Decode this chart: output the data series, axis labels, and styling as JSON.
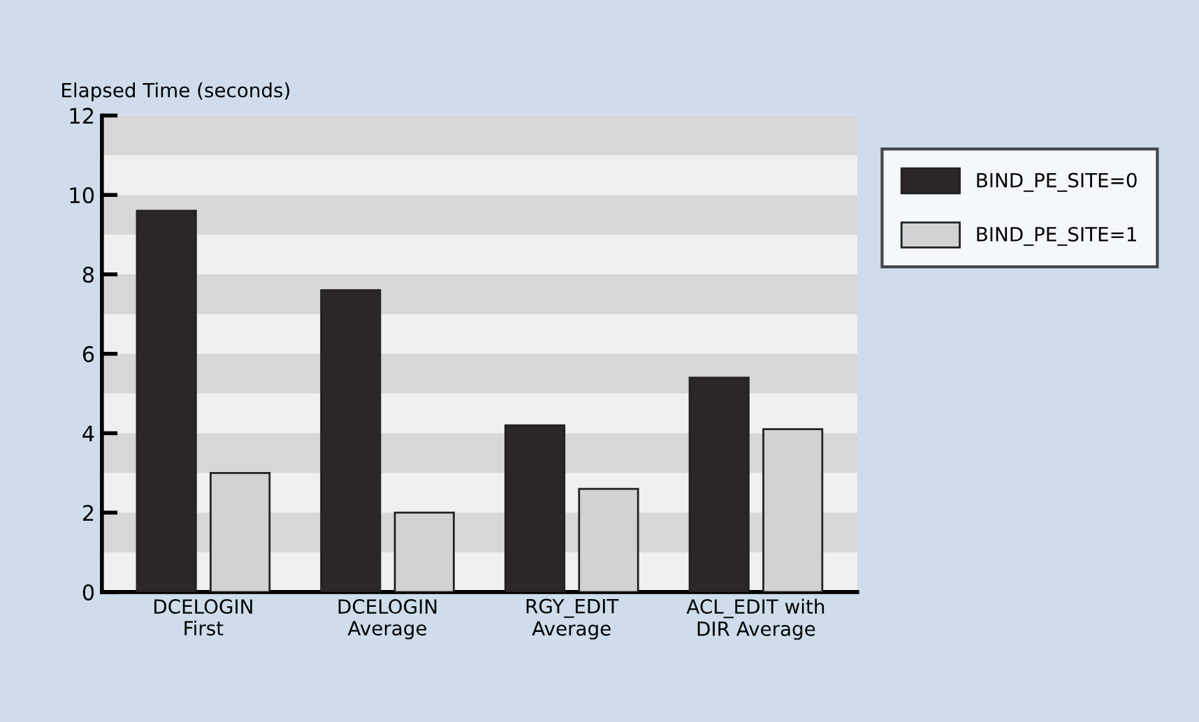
{
  "chart_data": {
    "type": "bar",
    "ylabel": "Elapsed Time (seconds)",
    "categories": [
      "DCELOGIN\nFirst",
      "DCELOGIN\nAverage",
      "RGY_EDIT\nAverage",
      "ACL_EDIT with\nDIR Average"
    ],
    "series": [
      {
        "name": "BIND_PE_SITE=0",
        "color": "#2b2726",
        "values": [
          9.6,
          7.6,
          4.2,
          5.4
        ]
      },
      {
        "name": "BIND_PE_SITE=1",
        "color": "#d2d2d2",
        "values": [
          3.0,
          2.0,
          2.6,
          4.1
        ]
      }
    ],
    "ylim": [
      0,
      12
    ],
    "yticks": [
      0,
      2,
      4,
      6,
      8,
      10,
      12
    ],
    "legend": "right"
  }
}
